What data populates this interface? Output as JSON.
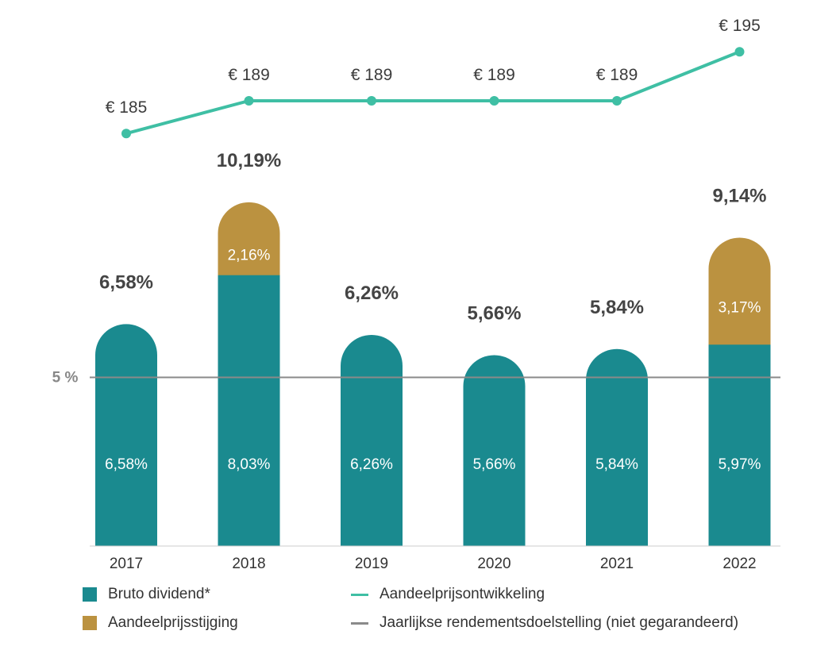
{
  "colors": {
    "dividend": "#1a8a8f",
    "price_increase": "#bb9240",
    "price_line": "#3fbfa4",
    "target_line": "#8a8a8a",
    "total_label": "#444444",
    "inner_label": "#ffffff",
    "price_label": "#3c3c3c",
    "axis_label": "#333333",
    "target_label": "#888888"
  },
  "chart_data": {
    "type": "bar",
    "stacked": true,
    "categories": [
      "2017",
      "2018",
      "2019",
      "2020",
      "2021",
      "2022"
    ],
    "series": [
      {
        "name": "Bruto dividend*",
        "values": [
          6.58,
          8.03,
          6.26,
          5.66,
          5.84,
          5.97
        ],
        "labels": [
          "6,58%",
          "8,03%",
          "6,26%",
          "5,66%",
          "5,84%",
          "5,97%"
        ]
      },
      {
        "name": "Aandeelprijsstijging",
        "values": [
          0,
          2.16,
          0,
          0,
          0,
          3.17
        ],
        "labels": [
          "",
          "2,16%",
          "",
          "",
          "",
          "3,17%"
        ]
      }
    ],
    "totals": [
      6.58,
      10.19,
      6.26,
      5.66,
      5.84,
      9.14
    ],
    "total_labels": [
      "6,58%",
      "10,19%",
      "6,26%",
      "5,66%",
      "5,84%",
      "9,14%"
    ],
    "price_line": {
      "name": "Aandeelprijsontwikkeling",
      "values": [
        185,
        189,
        189,
        189,
        189,
        195
      ],
      "labels": [
        "€ 185",
        "€ 189",
        "€ 189",
        "€ 189",
        "€ 189",
        "€ 195"
      ]
    },
    "target_line": {
      "name": "Jaarlijkse rendementsdoelstelling (niet gegarandeerd)",
      "value": 5,
      "label": "5 %"
    }
  },
  "legend": {
    "dividend": "Bruto dividend*",
    "price_increase": "Aandeelprijsstijging",
    "price_line": "Aandeelprijsontwikkeling",
    "target": "Jaarlijkse rendementsdoelstelling (niet gegarandeerd)"
  }
}
